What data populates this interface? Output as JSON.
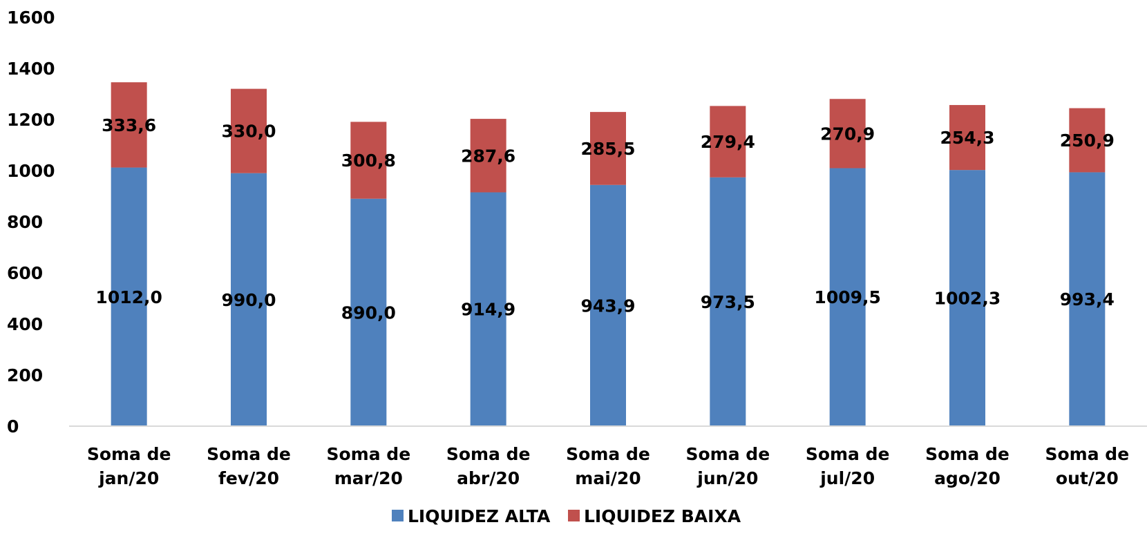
{
  "chart_data": {
    "type": "bar",
    "stacked": true,
    "categories": [
      [
        "Soma de",
        "jan/20"
      ],
      [
        "Soma de",
        "fev/20"
      ],
      [
        "Soma de",
        "mar/20"
      ],
      [
        "Soma de",
        "abr/20"
      ],
      [
        "Soma de",
        "mai/20"
      ],
      [
        "Soma de",
        "jun/20"
      ],
      [
        "Soma de",
        "jul/20"
      ],
      [
        "Soma de",
        "ago/20"
      ],
      [
        "Soma de",
        "out/20"
      ]
    ],
    "series": [
      {
        "name": "LIQUIDEZ ALTA",
        "color": "#4f81bd",
        "values": [
          1012.0,
          990.0,
          890.0,
          914.9,
          943.9,
          973.5,
          1009.5,
          1002.3,
          993.4
        ],
        "labels": [
          "1012,0",
          "990,0",
          "890,0",
          "914,9",
          "943,9",
          "973,5",
          "1009,5",
          "1002,3",
          "993,4"
        ]
      },
      {
        "name": "LIQUIDEZ BAIXA",
        "color": "#c0504d",
        "values": [
          333.6,
          330.0,
          300.8,
          287.6,
          285.5,
          279.4,
          270.9,
          254.3,
          250.9
        ],
        "labels": [
          "333,6",
          "330,0",
          "300,8",
          "287,6",
          "285,5",
          "279,4",
          "270,9",
          "254,3",
          "250,9"
        ]
      }
    ],
    "yticks": [
      "0",
      "200",
      "400",
      "600",
      "800",
      "1000",
      "1200",
      "1400",
      "1600"
    ],
    "ylim": [
      0,
      1600
    ],
    "grid": false,
    "legend": "bottom",
    "title": "",
    "xlabel": "",
    "ylabel": ""
  }
}
